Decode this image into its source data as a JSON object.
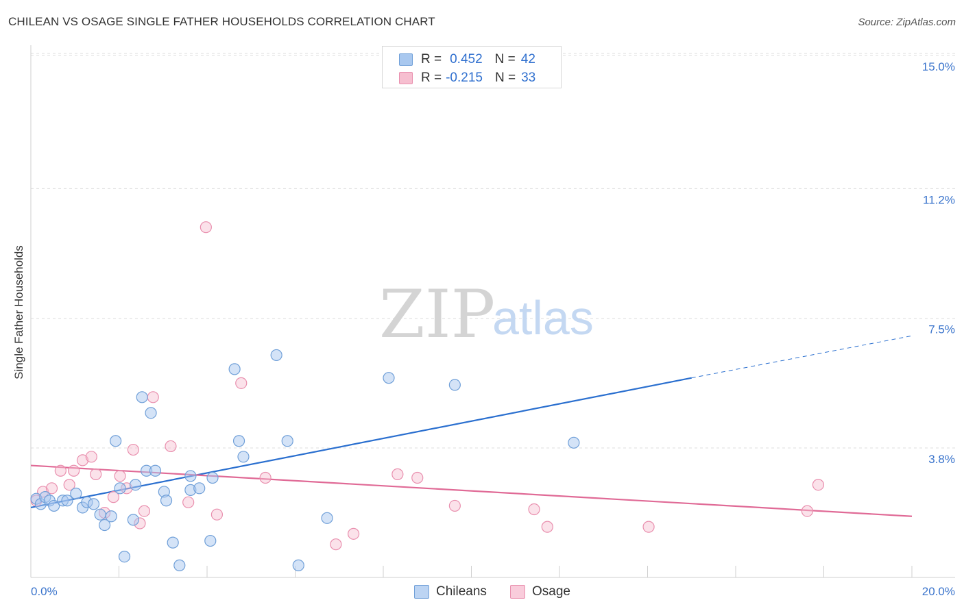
{
  "title": "CHILEAN VS OSAGE SINGLE FATHER HOUSEHOLDS CORRELATION CHART",
  "source": "Source: ZipAtlas.com",
  "watermark": {
    "zip": "ZIP",
    "atlas": "atlas"
  },
  "legend": {
    "rows": [
      {
        "r_label": "R =",
        "r_value": "0.452",
        "n_label": "N =",
        "n_value": "42"
      },
      {
        "r_label": "R =",
        "r_value": "-0.215",
        "n_label": "N =",
        "n_value": "33"
      }
    ]
  },
  "bottom_legend": {
    "chileans": "Chileans",
    "osage": "Osage"
  },
  "colors": {
    "blue_fill": "#a9c8ef",
    "blue_stroke": "#6f9fd8",
    "blue_line": "#2a6fcf",
    "pink_fill": "#f6bfd0",
    "pink_stroke": "#e98fae",
    "pink_line": "#e06a96",
    "grid": "#dcdcdc",
    "axis_text": "#3a74cc"
  },
  "chart_data": {
    "type": "scatter",
    "title": "CHILEAN VS OSAGE SINGLE FATHER HOUSEHOLDS CORRELATION CHART",
    "xlabel": "",
    "ylabel": "Single Father Households",
    "xlim": [
      0,
      20
    ],
    "ylim": [
      0,
      15.5
    ],
    "x_tick_labels": [
      {
        "value": 0,
        "label": "0.0%"
      },
      {
        "value": 20,
        "label": "20.0%"
      }
    ],
    "y_tick_labels": [
      {
        "value": 3.8,
        "label": "3.8%"
      },
      {
        "value": 7.5,
        "label": "7.5%"
      },
      {
        "value": 11.2,
        "label": "11.2%"
      },
      {
        "value": 15.0,
        "label": "15.0%"
      }
    ],
    "y_gridlines": [
      3.8,
      7.5,
      11.2,
      15.0
    ],
    "series": [
      {
        "name": "Chileans",
        "color": "blue",
        "r": 0.452,
        "n": 42,
        "trend": {
          "x0": 0,
          "y0": 2.1,
          "x1": 15,
          "y1": 5.8,
          "dash_to_x": 20,
          "dash_to_y": 7.0
        },
        "points": [
          [
            0.0,
            2.35
          ],
          [
            0.1,
            2.2
          ],
          [
            0.2,
            2.4
          ],
          [
            0.3,
            2.3
          ],
          [
            0.4,
            2.15
          ],
          [
            0.6,
            2.3
          ],
          [
            0.7,
            2.3
          ],
          [
            0.9,
            2.5
          ],
          [
            1.05,
            2.1
          ],
          [
            1.15,
            2.25
          ],
          [
            1.3,
            2.2
          ],
          [
            1.45,
            1.9
          ],
          [
            1.55,
            1.6
          ],
          [
            1.7,
            1.85
          ],
          [
            1.8,
            4.0
          ],
          [
            1.9,
            2.65
          ],
          [
            2.0,
            0.7
          ],
          [
            2.2,
            1.75
          ],
          [
            2.25,
            2.75
          ],
          [
            2.4,
            5.25
          ],
          [
            2.5,
            3.15
          ],
          [
            2.6,
            4.8
          ],
          [
            2.7,
            3.15
          ],
          [
            2.9,
            2.55
          ],
          [
            2.95,
            2.3
          ],
          [
            3.1,
            1.1
          ],
          [
            3.25,
            0.45
          ],
          [
            3.5,
            3.0
          ],
          [
            3.5,
            2.6
          ],
          [
            3.7,
            2.65
          ],
          [
            3.95,
            1.15
          ],
          [
            4.0,
            2.95
          ],
          [
            4.5,
            6.05
          ],
          [
            4.6,
            4.0
          ],
          [
            4.7,
            3.55
          ],
          [
            5.45,
            6.45
          ],
          [
            5.7,
            4.0
          ],
          [
            5.95,
            0.45
          ],
          [
            6.6,
            1.8
          ],
          [
            8.0,
            5.8
          ],
          [
            9.5,
            5.6
          ],
          [
            12.2,
            3.95
          ]
        ]
      },
      {
        "name": "Osage",
        "color": "pink",
        "r": -0.215,
        "n": 33,
        "trend": {
          "x0": 0,
          "y0": 3.3,
          "x1": 20,
          "y1": 1.85
        },
        "points": [
          [
            0.0,
            2.3
          ],
          [
            0.15,
            2.55
          ],
          [
            0.35,
            2.65
          ],
          [
            0.55,
            3.15
          ],
          [
            0.75,
            2.75
          ],
          [
            0.85,
            3.15
          ],
          [
            1.05,
            3.45
          ],
          [
            1.25,
            3.55
          ],
          [
            1.35,
            3.05
          ],
          [
            1.55,
            1.95
          ],
          [
            1.75,
            2.4
          ],
          [
            1.9,
            3.0
          ],
          [
            2.05,
            2.65
          ],
          [
            2.2,
            3.75
          ],
          [
            2.35,
            1.65
          ],
          [
            2.45,
            2.0
          ],
          [
            2.65,
            5.25
          ],
          [
            3.05,
            3.85
          ],
          [
            3.45,
            2.25
          ],
          [
            3.85,
            10.1
          ],
          [
            4.1,
            1.9
          ],
          [
            4.65,
            5.65
          ],
          [
            5.2,
            2.95
          ],
          [
            6.8,
            1.05
          ],
          [
            7.2,
            1.35
          ],
          [
            8.2,
            3.05
          ],
          [
            8.65,
            2.95
          ],
          [
            9.5,
            2.15
          ],
          [
            11.3,
            2.05
          ],
          [
            11.6,
            1.55
          ],
          [
            13.9,
            1.55
          ],
          [
            17.5,
            2.0
          ],
          [
            17.75,
            2.75
          ]
        ]
      }
    ]
  }
}
